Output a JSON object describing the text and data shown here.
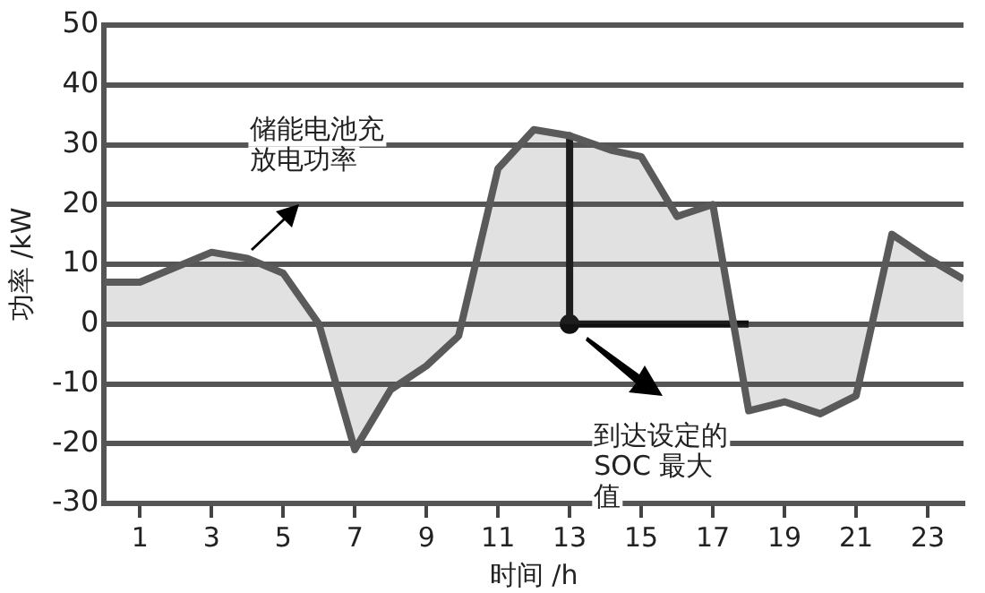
{
  "chart_data": {
    "type": "area",
    "xlabel": "时间 /h",
    "ylabel": "功率 /kW",
    "xlim": [
      0,
      24
    ],
    "xticks": [
      1,
      3,
      5,
      7,
      9,
      11,
      13,
      15,
      17,
      19,
      21,
      23
    ],
    "ylim": [
      -30,
      50
    ],
    "yticks": [
      -30,
      -20,
      -10,
      0,
      10,
      20,
      30,
      40,
      50
    ],
    "grid": "y",
    "legend": false,
    "marker": "none",
    "line_style": "solid",
    "series": [
      {
        "color": "#5a5a5a",
        "x": [
          0,
          1,
          3,
          4,
          5,
          6,
          7,
          8,
          9,
          9.9,
          11,
          12,
          13,
          14.2,
          15,
          16,
          17,
          18,
          19,
          20,
          21,
          22,
          23,
          24
        ],
        "values": [
          7,
          7,
          12,
          11,
          8.5,
          0,
          -21,
          -11,
          -7,
          -2,
          26,
          32.5,
          31.5,
          29,
          28,
          18,
          20,
          -14.5,
          -13,
          -15,
          -12,
          15,
          11,
          7.5
        ]
      },
      {
        "type": "line",
        "color": "#111111",
        "x": [
          13,
          13,
          18
        ],
        "values": [
          31.5,
          0,
          0
        ]
      },
      {
        "type": "scatter",
        "marker": "circle",
        "color": "#111111",
        "x": [
          13
        ],
        "values": [
          0
        ]
      }
    ],
    "annotations": [
      "储能电池充放电功率",
      "到达设定的SOC 最大值"
    ]
  }
}
